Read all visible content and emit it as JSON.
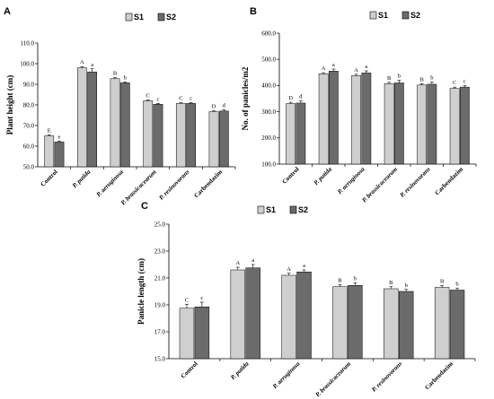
{
  "chart_data": [
    {
      "type": "bar",
      "panel": "A",
      "ylabel": "Plant height (cm)",
      "ylim": [
        50,
        110
      ],
      "yticks": [
        "50.0",
        "60.0",
        "70.0",
        "80.0",
        "90.0",
        "100.0",
        "110.0"
      ],
      "categories": [
        "Control",
        "P. putida",
        "P. aeruginosa",
        "P. brassicacearum",
        "P. resinovorans",
        "Carbendazim"
      ],
      "series": [
        {
          "name": "S1",
          "values": [
            65.0,
            98.0,
            92.7,
            82.0,
            80.7,
            76.7
          ],
          "errors": [
            0.5,
            0.6,
            0.5,
            0.5,
            0.4,
            0.4
          ],
          "letters": [
            "E",
            "A",
            "B",
            "C",
            "C",
            "D"
          ]
        },
        {
          "name": "S2",
          "values": [
            62.0,
            96.0,
            90.7,
            80.3,
            80.7,
            77.0
          ],
          "errors": [
            0.5,
            1.5,
            0.4,
            0.4,
            0.4,
            0.6
          ],
          "letters": [
            "e",
            "a",
            "b",
            "c",
            "c",
            "d"
          ]
        }
      ]
    },
    {
      "type": "bar",
      "panel": "B",
      "ylabel": "No. of panicles/m2",
      "ylim": [
        100,
        600
      ],
      "yticks": [
        "100.0",
        "200.0",
        "300.0",
        "400.0",
        "500.0",
        "600.0"
      ],
      "categories": [
        "Control",
        "P. putida",
        "P. aeruginosa",
        "P. brassicacearum",
        "P. resinovorans",
        "Carbendazim"
      ],
      "series": [
        {
          "name": "S1",
          "values": [
            331,
            445,
            438,
            407,
            402,
            389
          ],
          "errors": [
            5,
            4,
            5,
            5,
            5,
            5
          ],
          "letters": [
            "D",
            "A",
            "A",
            "B",
            "B",
            "C"
          ]
        },
        {
          "name": "S2",
          "values": [
            333,
            455,
            448,
            410,
            405,
            394
          ],
          "errors": [
            8,
            8,
            8,
            10,
            8,
            6
          ],
          "letters": [
            "d",
            "a",
            "a",
            "b",
            "b",
            "c"
          ]
        }
      ]
    },
    {
      "type": "bar",
      "panel": "C",
      "ylabel": "Panicle length (cm)",
      "ylim": [
        15,
        25
      ],
      "yticks": [
        "15.0",
        "17.0",
        "19.0",
        "21.0",
        "23.0",
        "25.0"
      ],
      "categories": [
        "Control",
        "P. putida",
        "P. aeruginosa",
        "P. brassicacearum",
        "P. resinovorans",
        "Carbendazim"
      ],
      "series": [
        {
          "name": "S1",
          "values": [
            18.75,
            21.6,
            21.2,
            20.35,
            20.2,
            20.3
          ],
          "errors": [
            0.3,
            0.2,
            0.15,
            0.15,
            0.15,
            0.15
          ],
          "letters": [
            "C",
            "A",
            "A",
            "B",
            "B",
            "B"
          ]
        },
        {
          "name": "S2",
          "values": [
            18.85,
            21.75,
            21.45,
            20.45,
            20.0,
            20.1
          ],
          "errors": [
            0.35,
            0.25,
            0.15,
            0.2,
            0.15,
            0.15
          ],
          "letters": [
            "c",
            "a",
            "a",
            "b",
            "b",
            "b"
          ]
        }
      ]
    }
  ],
  "colors": {
    "s1": "#cfcfcf",
    "s2": "#6b6b6b",
    "axis": "#000000"
  }
}
